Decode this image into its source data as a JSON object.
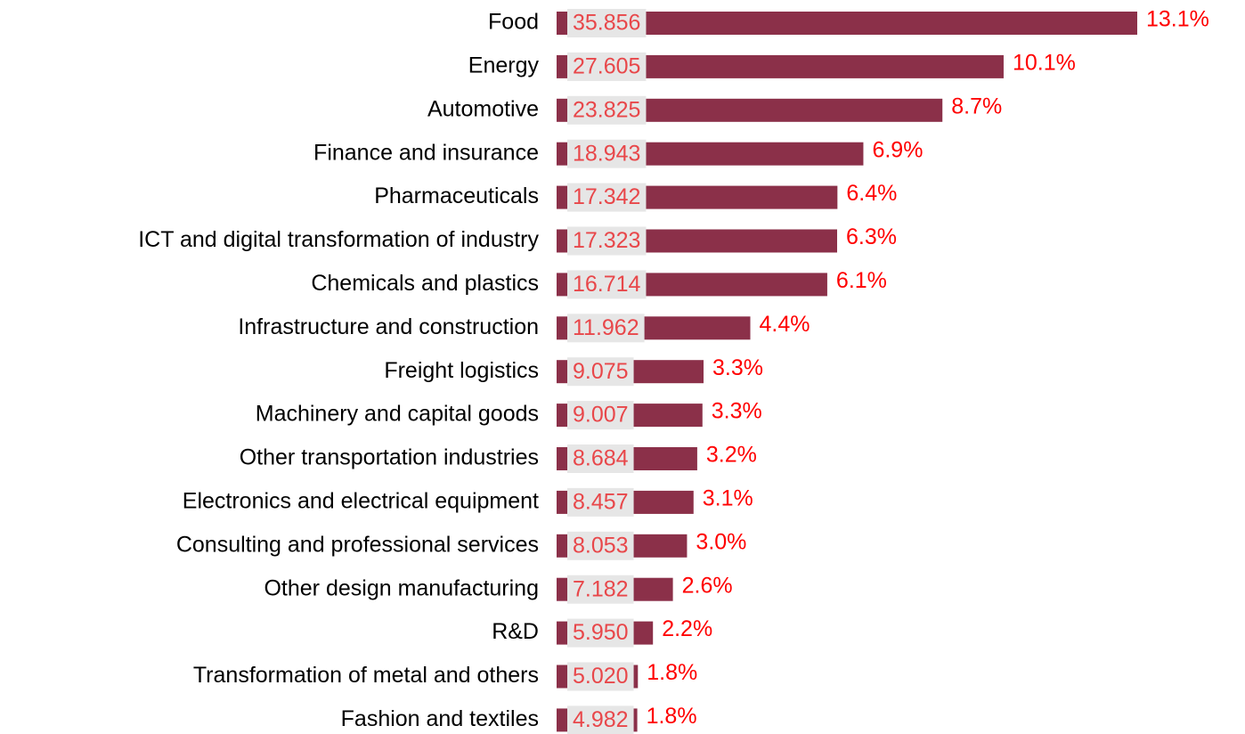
{
  "chart_data": {
    "type": "bar",
    "color": "#8b3049",
    "categories": [
      "Food",
      "Energy",
      "Automotive",
      "Finance and insurance",
      "Pharmaceuticals",
      "ICT and digital transformation of industry",
      "Chemicals and plastics",
      "Infrastructure and construction",
      "Freight logistics",
      "Machinery and capital goods",
      "Other transportation industries",
      "Electronics and electrical equipment",
      "Consulting and professional services",
      "Other design manufacturing",
      "R&D",
      "Transformation of metal and others",
      "Fashion and textiles"
    ],
    "values": [
      35.856,
      27.605,
      23.825,
      18.943,
      17.342,
      17.323,
      16.714,
      11.962,
      9.075,
      9.007,
      8.684,
      8.457,
      8.053,
      7.182,
      5.95,
      5.02,
      4.982
    ],
    "value_labels": [
      "35.856",
      "27.605",
      "23.825",
      "18.943",
      "17.342",
      "17.323",
      "16.714",
      "11.962",
      "9.075",
      "9.007",
      "8.684",
      "8.457",
      "8.053",
      "7.182",
      "5.950",
      "5.020",
      "4.982"
    ],
    "shares": [
      13.1,
      10.1,
      8.7,
      6.9,
      6.4,
      6.3,
      6.1,
      4.4,
      3.3,
      3.3,
      3.2,
      3.1,
      3.0,
      2.6,
      2.2,
      1.8,
      1.8
    ],
    "share_labels": [
      "13.1%",
      "10.1%",
      "8.7%",
      "6.9%",
      "6.4%",
      "6.3%",
      "6.1%",
      "4.4%",
      "3.3%",
      "3.3%",
      "3.2%",
      "3.1%",
      "3.0%",
      "2.6%",
      "2.2%",
      "1.8%",
      "1.8%"
    ]
  }
}
